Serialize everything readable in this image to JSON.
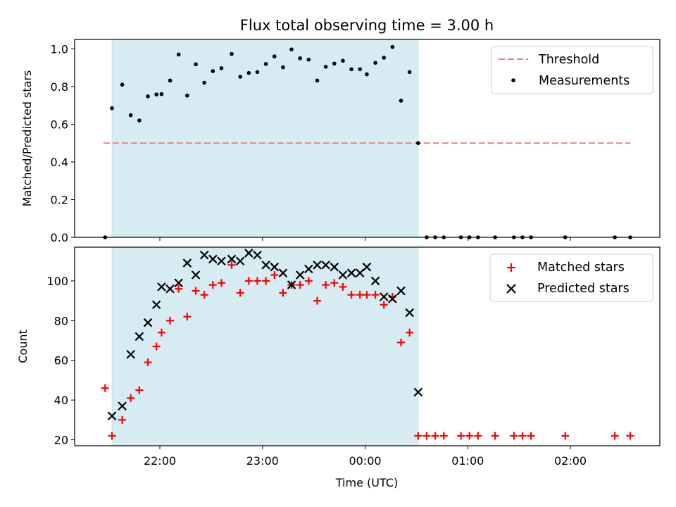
{
  "chart_data": [
    {
      "type": "scatter",
      "title": "Flux total observing time = 3.00 h",
      "xlabel": "",
      "ylabel": "Matched/Predicted stars",
      "ylim": [
        0,
        1.05
      ],
      "y_ticks": [
        "0.0",
        "0.2",
        "0.4",
        "0.6",
        "0.8",
        "1.0"
      ],
      "shaded_span": [
        "21:32",
        "00:31"
      ],
      "threshold": {
        "name": "Threshold",
        "value": 0.5,
        "from": "21:27",
        "to": "02:35",
        "color": "#f08080"
      },
      "legend": [
        "Threshold",
        "Measurements"
      ],
      "legend_position": "upper right",
      "series": [
        {
          "name": "Measurements",
          "color": "#000000",
          "points": [
            [
              "21:28",
              0.0
            ],
            [
              "21:32",
              0.685
            ],
            [
              "21:38",
              0.81
            ],
            [
              "21:43",
              0.648
            ],
            [
              "21:48",
              0.62
            ],
            [
              "21:53",
              0.748
            ],
            [
              "21:58",
              0.758
            ],
            [
              "22:01",
              0.76
            ],
            [
              "22:06",
              0.832
            ],
            [
              "22:11",
              0.97
            ],
            [
              "22:16",
              0.752
            ],
            [
              "22:21",
              0.918
            ],
            [
              "22:26",
              0.82
            ],
            [
              "22:31",
              0.882
            ],
            [
              "22:36",
              0.897
            ],
            [
              "22:42",
              0.973
            ],
            [
              "22:47",
              0.852
            ],
            [
              "22:52",
              0.872
            ],
            [
              "22:57",
              0.877
            ],
            [
              "23:02",
              0.92
            ],
            [
              "23:07",
              0.96
            ],
            [
              "23:12",
              0.902
            ],
            [
              "23:17",
              0.997
            ],
            [
              "23:22",
              0.95
            ],
            [
              "23:27",
              0.943
            ],
            [
              "23:32",
              0.832
            ],
            [
              "23:37",
              0.905
            ],
            [
              "23:42",
              0.922
            ],
            [
              "23:47",
              0.937
            ],
            [
              "23:52",
              0.892
            ],
            [
              "23:57",
              0.892
            ],
            [
              "00:01",
              0.865
            ],
            [
              "00:06",
              0.926
            ],
            [
              "00:11",
              0.953
            ],
            [
              "00:16",
              1.01
            ],
            [
              "00:21",
              0.725
            ],
            [
              "00:26",
              0.877
            ],
            [
              "00:31",
              0.5
            ],
            [
              "00:36",
              0.0
            ],
            [
              "00:41",
              0.0
            ],
            [
              "00:46",
              0.0
            ],
            [
              "00:56",
              0.0
            ],
            [
              "01:01",
              0.0
            ],
            [
              "01:06",
              0.0
            ],
            [
              "01:16",
              0.0
            ],
            [
              "01:27",
              0.0
            ],
            [
              "01:32",
              0.0
            ],
            [
              "01:37",
              0.0
            ],
            [
              "01:57",
              0.0
            ],
            [
              "02:26",
              0.0
            ],
            [
              "02:35",
              0.0
            ]
          ]
        }
      ]
    },
    {
      "type": "scatter",
      "title": "",
      "xlabel": "Time (UTC)",
      "ylabel": "Count",
      "ylim": [
        17,
        117
      ],
      "y_ticks": [
        "20",
        "40",
        "60",
        "80",
        "100"
      ],
      "x_ticks": [
        "22:00",
        "23:00",
        "00:00",
        "01:00",
        "02:00"
      ],
      "shaded_span": [
        "21:32",
        "00:31"
      ],
      "legend": [
        "Matched stars",
        "Predicted stars"
      ],
      "legend_position": "upper right",
      "series": [
        {
          "name": "Matched stars",
          "color": "#ff0000",
          "marker": "plus",
          "points": [
            [
              "21:28",
              46
            ],
            [
              "21:32",
              22
            ],
            [
              "21:38",
              30
            ],
            [
              "21:43",
              41
            ],
            [
              "21:48",
              45
            ],
            [
              "21:53",
              59
            ],
            [
              "21:58",
              67
            ],
            [
              "22:01",
              74
            ],
            [
              "22:06",
              80
            ],
            [
              "22:11",
              96
            ],
            [
              "22:16",
              82
            ],
            [
              "22:21",
              95
            ],
            [
              "22:26",
              93
            ],
            [
              "22:31",
              98
            ],
            [
              "22:36",
              99
            ],
            [
              "22:42",
              108
            ],
            [
              "22:47",
              94
            ],
            [
              "22:52",
              100
            ],
            [
              "22:57",
              100
            ],
            [
              "23:02",
              100
            ],
            [
              "23:07",
              103
            ],
            [
              "23:12",
              94
            ],
            [
              "23:17",
              98
            ],
            [
              "23:22",
              98
            ],
            [
              "23:27",
              100
            ],
            [
              "23:32",
              90
            ],
            [
              "23:37",
              98
            ],
            [
              "23:42",
              99
            ],
            [
              "23:47",
              97
            ],
            [
              "23:52",
              93
            ],
            [
              "23:57",
              93
            ],
            [
              "00:01",
              93
            ],
            [
              "00:06",
              93
            ],
            [
              "00:11",
              88
            ],
            [
              "00:16",
              92
            ],
            [
              "00:21",
              69
            ],
            [
              "00:26",
              74
            ],
            [
              "00:31",
              22
            ],
            [
              "00:36",
              22
            ],
            [
              "00:41",
              22
            ],
            [
              "00:46",
              22
            ],
            [
              "00:56",
              22
            ],
            [
              "01:01",
              22
            ],
            [
              "01:06",
              22
            ],
            [
              "01:16",
              22
            ],
            [
              "01:27",
              22
            ],
            [
              "01:32",
              22
            ],
            [
              "01:37",
              22
            ],
            [
              "01:57",
              22
            ],
            [
              "02:26",
              22
            ],
            [
              "02:35",
              22
            ]
          ]
        },
        {
          "name": "Predicted stars",
          "color": "#000000",
          "marker": "x",
          "points": [
            [
              "21:32",
              32
            ],
            [
              "21:38",
              37
            ],
            [
              "21:43",
              63
            ],
            [
              "21:48",
              72
            ],
            [
              "21:53",
              79
            ],
            [
              "21:58",
              88
            ],
            [
              "22:01",
              97
            ],
            [
              "22:06",
              96
            ],
            [
              "22:11",
              99
            ],
            [
              "22:16",
              109
            ],
            [
              "22:21",
              103
            ],
            [
              "22:26",
              113
            ],
            [
              "22:31",
              111
            ],
            [
              "22:36",
              110
            ],
            [
              "22:42",
              111
            ],
            [
              "22:47",
              110
            ],
            [
              "22:52",
              114
            ],
            [
              "22:57",
              113
            ],
            [
              "23:02",
              108
            ],
            [
              "23:07",
              107
            ],
            [
              "23:12",
              104
            ],
            [
              "23:17",
              98
            ],
            [
              "23:22",
              103
            ],
            [
              "23:27",
              106
            ],
            [
              "23:32",
              108
            ],
            [
              "23:37",
              108
            ],
            [
              "23:42",
              107
            ],
            [
              "23:47",
              103
            ],
            [
              "23:52",
              104
            ],
            [
              "23:57",
              104
            ],
            [
              "00:01",
              107
            ],
            [
              "00:06",
              100
            ],
            [
              "00:11",
              92
            ],
            [
              "00:16",
              91
            ],
            [
              "00:21",
              95
            ],
            [
              "00:26",
              84
            ],
            [
              "00:31",
              44
            ]
          ]
        }
      ]
    }
  ]
}
